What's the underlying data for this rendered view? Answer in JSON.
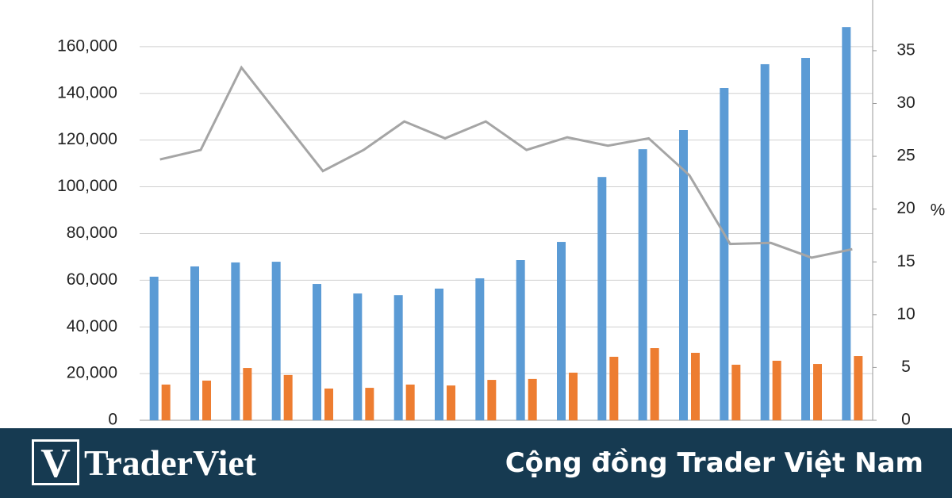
{
  "chart_data": {
    "type": "bar-line",
    "categories": [
      null,
      null,
      null,
      null,
      null,
      null,
      null,
      null,
      null,
      null,
      null,
      null,
      null,
      null,
      null,
      null,
      null,
      null
    ],
    "series": [
      {
        "type": "bar",
        "color": "#5b9bd5",
        "values": [
          61500,
          65900,
          67600,
          67900,
          58400,
          54300,
          53600,
          56400,
          60800,
          68600,
          76400,
          104200,
          116100,
          124300,
          142300,
          152500,
          155200,
          168400
        ]
      },
      {
        "type": "bar",
        "color": "#ed7d31",
        "values": [
          15300,
          17000,
          22400,
          19400,
          13600,
          13900,
          15300,
          14900,
          17300,
          17700,
          20400,
          27200,
          30900,
          28900,
          23800,
          25500,
          24100,
          27500
        ]
      },
      {
        "type": "line",
        "axis": "y2",
        "color": "#a5a5a5",
        "values": [
          24.7,
          25.6,
          33.4,
          28.5,
          23.6,
          25.6,
          28.3,
          26.7,
          28.3,
          25.6,
          26.8,
          26.0,
          26.7,
          23.2,
          16.7,
          16.8,
          15.4,
          16.2
        ]
      }
    ],
    "ylim": [
      0,
      180000
    ],
    "yticks": [
      0,
      {
        "value": 20000,
        "label": "20,000"
      },
      {
        "value": 40000,
        "label": "40,000"
      },
      {
        "value": 60000,
        "label": "60,000"
      },
      {
        "value": 80000,
        "label": "80,000"
      },
      {
        "value": 100000,
        "label": "100,000"
      },
      {
        "value": 120000,
        "label": "120,000"
      },
      {
        "value": 140000,
        "label": "140,000"
      },
      {
        "value": 160000,
        "label": "160,000"
      }
    ],
    "y2lim": [
      0,
      39.8
    ],
    "y2ticks": [
      0,
      5,
      10,
      15,
      20,
      25,
      30,
      35
    ],
    "y2label": "%",
    "grid": true
  },
  "footer": {
    "logo_mark": "V",
    "logo": "TraderViet",
    "tagline": "Cộng đồng Trader Việt Nam"
  }
}
